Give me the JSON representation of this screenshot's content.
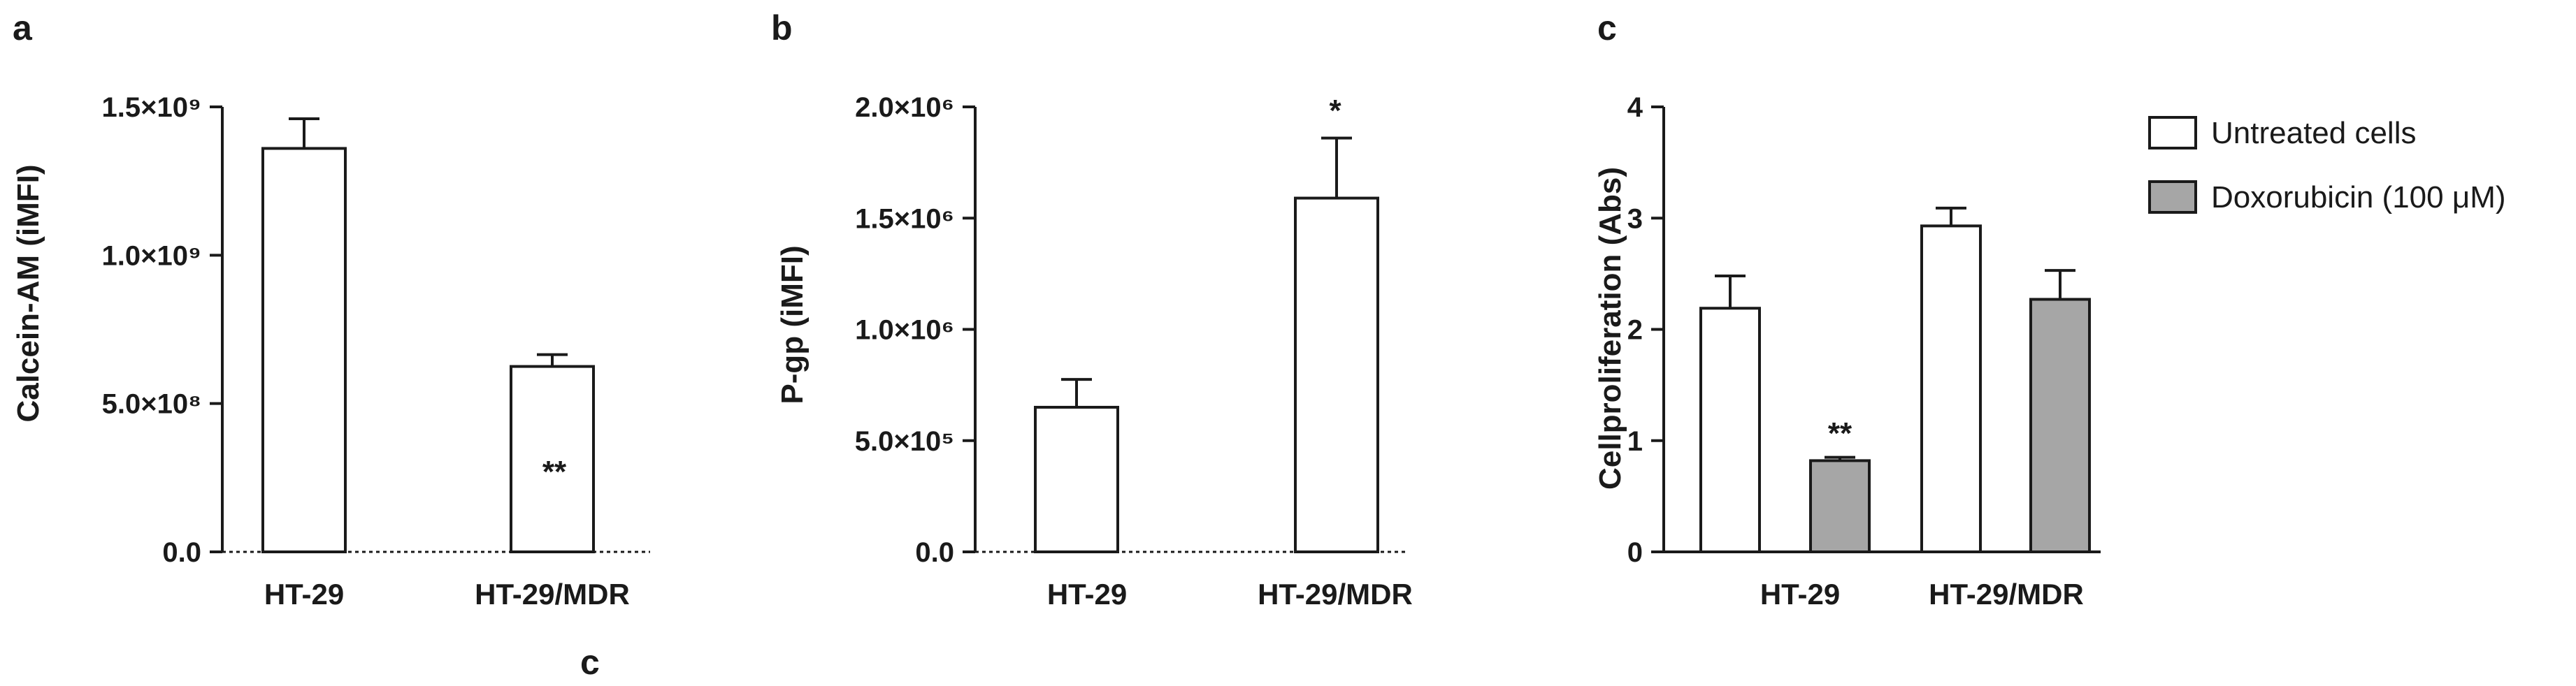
{
  "figure": {
    "stray_label": "c"
  },
  "colors": {
    "untreated_fill": "#ffffff",
    "doxorubicin_fill": "#a6a6a6",
    "ink": "#1a1a1a"
  },
  "chart_data": [
    {
      "panel": "a",
      "type": "bar",
      "ylabel": "Calcein-AM (iMFI)",
      "categories": [
        "HT-29",
        "HT-29/MDR"
      ],
      "series": [
        {
          "values": [
            1360000000,
            625000000
          ],
          "errors": [
            100000000,
            40000000
          ]
        }
      ],
      "significance": [
        "",
        "**"
      ],
      "ylim": [
        0,
        1500000000
      ],
      "yticks": [
        0,
        500000000,
        1000000000,
        1500000000
      ],
      "ytick_labels": [
        "0.0",
        "5.0×10⁸",
        "1.0×10⁹",
        "1.5×10⁹"
      ],
      "grid": false
    },
    {
      "panel": "b",
      "type": "bar",
      "ylabel": "P-gp (iMFI)",
      "categories": [
        "HT-29",
        "HT-29/MDR"
      ],
      "series": [
        {
          "values": [
            650000,
            1590000
          ],
          "errors": [
            125000,
            270000
          ]
        }
      ],
      "significance": [
        "",
        "*"
      ],
      "ylim": [
        0,
        2000000
      ],
      "yticks": [
        0,
        500000,
        1000000,
        1500000,
        2000000
      ],
      "ytick_labels": [
        "0.0",
        "5.0×10⁵",
        "1.0×10⁶",
        "1.5×10⁶",
        "2.0×10⁶"
      ],
      "grid": false
    },
    {
      "panel": "c",
      "type": "bar",
      "ylabel": "Cellproliferation (Abs)",
      "categories": [
        "HT-29",
        "HT-29/MDR"
      ],
      "series": [
        {
          "name": "Untreated cells",
          "values": [
            2.19,
            2.93
          ],
          "errors": [
            0.29,
            0.16
          ]
        },
        {
          "name": "Doxorubicin (100 μM)",
          "values": [
            0.82,
            2.27
          ],
          "errors": [
            0.03,
            0.26
          ]
        }
      ],
      "significance": [
        [
          "",
          "**"
        ],
        [
          "",
          ""
        ]
      ],
      "ylim": [
        0,
        4
      ],
      "yticks": [
        0,
        1,
        2,
        3,
        4
      ],
      "ytick_labels": [
        "0",
        "1",
        "2",
        "3",
        "4"
      ],
      "legend_position": "top-right",
      "grid": false
    }
  ]
}
